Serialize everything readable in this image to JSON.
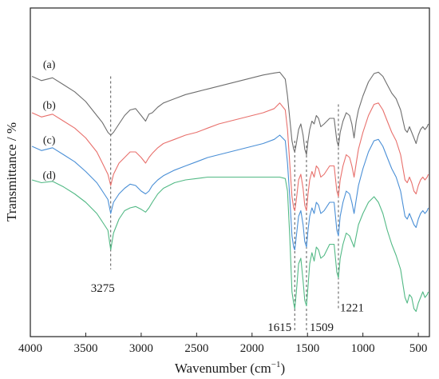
{
  "chart_data": {
    "type": "line",
    "title": "",
    "xlabel": "Wavenumber (cm",
    "xlabel_sup": "−1",
    "xlabel_close": ")",
    "ylabel": "Transmittance / %",
    "xlim": [
      4000,
      400
    ],
    "x_reversed": true,
    "xticks": [
      4000,
      3500,
      3000,
      2500,
      2000,
      1500,
      1000,
      500
    ],
    "ylim": [
      0,
      100
    ],
    "y_ticks_shown": false,
    "grid": false,
    "reference_lines": [
      3275,
      1615,
      1509,
      1221
    ],
    "annotations": [
      {
        "text": "3275",
        "x": 3275,
        "y": 10
      },
      {
        "text": "1615",
        "x": 1615,
        "y": -4
      },
      {
        "text": "1509",
        "x": 1509,
        "y": -4
      },
      {
        "text": "1221",
        "x": 1221,
        "y": 3
      }
    ],
    "series": [
      {
        "name": "(a)",
        "color": "#6e6e6e",
        "label_pos": {
          "x": 3830,
          "y": 90
        },
        "x": [
          3985,
          3900,
          3800,
          3700,
          3600,
          3500,
          3400,
          3350,
          3300,
          3275,
          3250,
          3200,
          3150,
          3100,
          3050,
          3000,
          2960,
          2930,
          2900,
          2850,
          2800,
          2700,
          2600,
          2500,
          2400,
          2300,
          2200,
          2100,
          2000,
          1900,
          1800,
          1750,
          1700,
          1680,
          1660,
          1640,
          1625,
          1615,
          1600,
          1580,
          1560,
          1540,
          1525,
          1509,
          1495,
          1480,
          1460,
          1440,
          1420,
          1400,
          1380,
          1350,
          1300,
          1260,
          1235,
          1221,
          1205,
          1180,
          1150,
          1120,
          1100,
          1080,
          1060,
          1040,
          1000,
          950,
          900,
          860,
          820,
          780,
          740,
          700,
          660,
          620,
          600,
          580,
          560,
          540,
          520,
          500,
          480,
          460,
          440,
          420,
          410
        ],
        "y": [
          87,
          85.5,
          86.5,
          84,
          81.5,
          78,
          73,
          70.5,
          67,
          66,
          67,
          70,
          73,
          75,
          75.5,
          73,
          71,
          73.5,
          74,
          76,
          77.5,
          79,
          80.5,
          81.5,
          82.5,
          83.5,
          84.5,
          85.5,
          86.5,
          87.5,
          88.2,
          88.5,
          86,
          80,
          72,
          64,
          61,
          60,
          63,
          68,
          70,
          66,
          61,
          59,
          64,
          68,
          71,
          70,
          73,
          72,
          69,
          70,
          72,
          72,
          64,
          62,
          67,
          71,
          74,
          73,
          70,
          65,
          71,
          75,
          80,
          85,
          88,
          88.5,
          87,
          84,
          81,
          79,
          75,
          68,
          67,
          69,
          67,
          65,
          63,
          66,
          68,
          69,
          68,
          69,
          70
        ]
      },
      {
        "name": "(b)",
        "color": "#e8706c",
        "label_pos": {
          "x": 3830,
          "y": 75.5
        },
        "x": [
          3985,
          3900,
          3800,
          3700,
          3600,
          3500,
          3400,
          3350,
          3300,
          3275,
          3250,
          3200,
          3150,
          3100,
          3050,
          3000,
          2960,
          2930,
          2900,
          2850,
          2800,
          2700,
          2600,
          2500,
          2400,
          2300,
          2200,
          2100,
          2000,
          1900,
          1800,
          1750,
          1700,
          1680,
          1660,
          1640,
          1625,
          1615,
          1600,
          1580,
          1560,
          1540,
          1525,
          1509,
          1495,
          1480,
          1460,
          1440,
          1420,
          1400,
          1380,
          1350,
          1300,
          1260,
          1235,
          1221,
          1205,
          1180,
          1150,
          1120,
          1100,
          1080,
          1060,
          1040,
          1000,
          950,
          900,
          860,
          820,
          780,
          740,
          700,
          660,
          620,
          600,
          580,
          560,
          540,
          520,
          500,
          480,
          460,
          440,
          420,
          410
        ],
        "y": [
          74,
          72.5,
          73.5,
          71,
          68.5,
          65,
          60,
          56,
          52,
          48,
          52,
          56,
          58,
          60,
          60,
          58,
          56,
          58,
          59.5,
          61.5,
          63,
          64.5,
          66,
          67,
          68.5,
          70,
          71,
          72,
          73,
          74,
          75.5,
          77.5,
          75,
          68,
          56,
          44,
          40,
          39,
          43,
          50,
          52,
          47,
          41,
          39,
          45,
          50,
          53,
          51,
          55,
          54,
          51,
          52,
          55,
          55,
          46,
          44,
          50,
          55,
          59,
          58,
          55,
          51,
          56,
          61,
          67,
          73,
          77,
          77.5,
          75,
          71,
          67,
          64,
          59,
          50,
          49,
          51,
          49,
          46,
          45,
          48,
          50,
          51,
          50,
          51,
          52
        ]
      },
      {
        "name": "(c)",
        "color": "#4a8fd6",
        "label_pos": {
          "x": 3830,
          "y": 63
        },
        "x": [
          3985,
          3900,
          3800,
          3700,
          3600,
          3500,
          3400,
          3350,
          3300,
          3275,
          3250,
          3200,
          3150,
          3100,
          3050,
          3000,
          2960,
          2930,
          2900,
          2850,
          2800,
          2700,
          2600,
          2500,
          2400,
          2300,
          2200,
          2100,
          2000,
          1900,
          1800,
          1750,
          1700,
          1680,
          1660,
          1640,
          1625,
          1615,
          1600,
          1580,
          1560,
          1540,
          1525,
          1509,
          1495,
          1480,
          1460,
          1440,
          1420,
          1400,
          1380,
          1350,
          1300,
          1260,
          1235,
          1221,
          1205,
          1180,
          1150,
          1120,
          1100,
          1080,
          1060,
          1040,
          1000,
          950,
          900,
          860,
          820,
          780,
          740,
          700,
          660,
          620,
          600,
          580,
          560,
          540,
          520,
          500,
          480,
          460,
          440,
          420,
          410
        ],
        "y": [
          62,
          60.5,
          61.5,
          59,
          56.5,
          53,
          49,
          46,
          43,
          38,
          42,
          45,
          47,
          48.5,
          48,
          46,
          45,
          46,
          48,
          50,
          51.5,
          53.5,
          55,
          56.5,
          58,
          59,
          60,
          61,
          62,
          63,
          64.5,
          66,
          64,
          56,
          44,
          30,
          26,
          25,
          30,
          37,
          39,
          34,
          28,
          26,
          32,
          37,
          40,
          38,
          42,
          41,
          38,
          39,
          42,
          42,
          32,
          30,
          37,
          42,
          46,
          45,
          42,
          38,
          43,
          48,
          54,
          60,
          64,
          64.5,
          62,
          58,
          54,
          51,
          46,
          37,
          36,
          38,
          36,
          34,
          33,
          36,
          38,
          39,
          38,
          39,
          40
        ]
      },
      {
        "name": "(d)",
        "color": "#52b985",
        "label_pos": {
          "x": 3830,
          "y": 50.5
        },
        "x": [
          3985,
          3900,
          3800,
          3700,
          3600,
          3500,
          3400,
          3350,
          3300,
          3275,
          3250,
          3200,
          3150,
          3100,
          3050,
          3000,
          2960,
          2930,
          2900,
          2850,
          2800,
          2700,
          2600,
          2500,
          2400,
          2300,
          2200,
          2100,
          2000,
          1900,
          1800,
          1750,
          1700,
          1680,
          1660,
          1640,
          1625,
          1615,
          1600,
          1580,
          1560,
          1540,
          1525,
          1509,
          1495,
          1480,
          1460,
          1440,
          1420,
          1400,
          1380,
          1350,
          1300,
          1260,
          1235,
          1221,
          1205,
          1180,
          1150,
          1120,
          1100,
          1080,
          1060,
          1040,
          1000,
          950,
          900,
          860,
          820,
          780,
          740,
          700,
          660,
          620,
          600,
          580,
          560,
          540,
          520,
          500,
          480,
          460,
          440,
          420,
          410
        ],
        "y": [
          50,
          49,
          49.5,
          47.5,
          45,
          42,
          38,
          35,
          32,
          25,
          31,
          36,
          39,
          40,
          40.5,
          39.5,
          38.5,
          40,
          42,
          45,
          47,
          49,
          50,
          50.5,
          51,
          51,
          51,
          51,
          51,
          51,
          51,
          51,
          50.5,
          46,
          30,
          10,
          6,
          4,
          10,
          20,
          22,
          14,
          7,
          5,
          12,
          20,
          24,
          21,
          26,
          25,
          22,
          23,
          27,
          27,
          17,
          15,
          22,
          27,
          31,
          30,
          28,
          26,
          30,
          34,
          38,
          42,
          44,
          42,
          38,
          32,
          27,
          23,
          18,
          8,
          6,
          9,
          8,
          4,
          3,
          6,
          8,
          10,
          8,
          9,
          10
        ]
      }
    ]
  }
}
